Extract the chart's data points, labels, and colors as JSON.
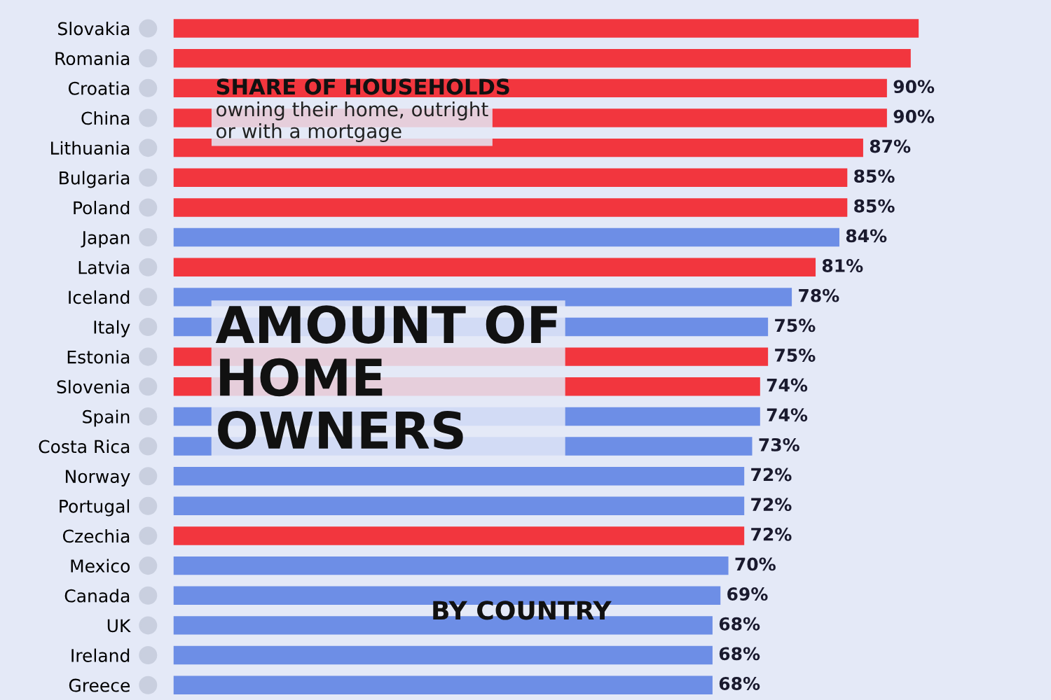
{
  "chart_data": {
    "type": "bar",
    "orientation": "horizontal",
    "title": "AMOUNT OF\nHOME\nOWNERS",
    "subtitle": "BY COUNTRY",
    "annotations": [
      "SHARE OF HOUSEHOLDS",
      "owning their home, outright\nor with a mortgage"
    ],
    "categories": [
      "Slovakia",
      "Romania",
      "Croatia",
      "China",
      "Lithuania",
      "Bulgaria",
      "Poland",
      "Japan",
      "Latvia",
      "Iceland",
      "Italy",
      "Estonia",
      "Slovenia",
      "Spain",
      "Costa Rica",
      "Norway",
      "Portugal",
      "Czechia",
      "Mexico",
      "Canada",
      "UK",
      "Ireland",
      "Greece"
    ],
    "values": [
      94,
      93,
      90,
      90,
      87,
      85,
      85,
      84,
      81,
      78,
      75,
      75,
      74,
      74,
      73,
      72,
      72,
      72,
      70,
      69,
      68,
      68,
      68
    ],
    "value_labels": [
      null,
      null,
      "90%",
      "90%",
      "87%",
      "85%",
      "85%",
      "84%",
      "81%",
      "78%",
      "75%",
      "75%",
      "74%",
      "74%",
      "73%",
      "72%",
      "72%",
      "72%",
      "70%",
      "69%",
      "68%",
      "68%",
      "68%"
    ],
    "colors": [
      "#f2363e",
      "#f2363e",
      "#f2363e",
      "#f2363e",
      "#f2363e",
      "#f2363e",
      "#f2363e",
      "#6d8ee6",
      "#f2363e",
      "#6d8ee6",
      "#6d8ee6",
      "#f2363e",
      "#f2363e",
      "#6d8ee6",
      "#6d8ee6",
      "#6d8ee6",
      "#6d8ee6",
      "#f2363e",
      "#6d8ee6",
      "#6d8ee6",
      "#6d8ee6",
      "#6d8ee6",
      "#6d8ee6"
    ],
    "grid": false,
    "legend": false
  }
}
